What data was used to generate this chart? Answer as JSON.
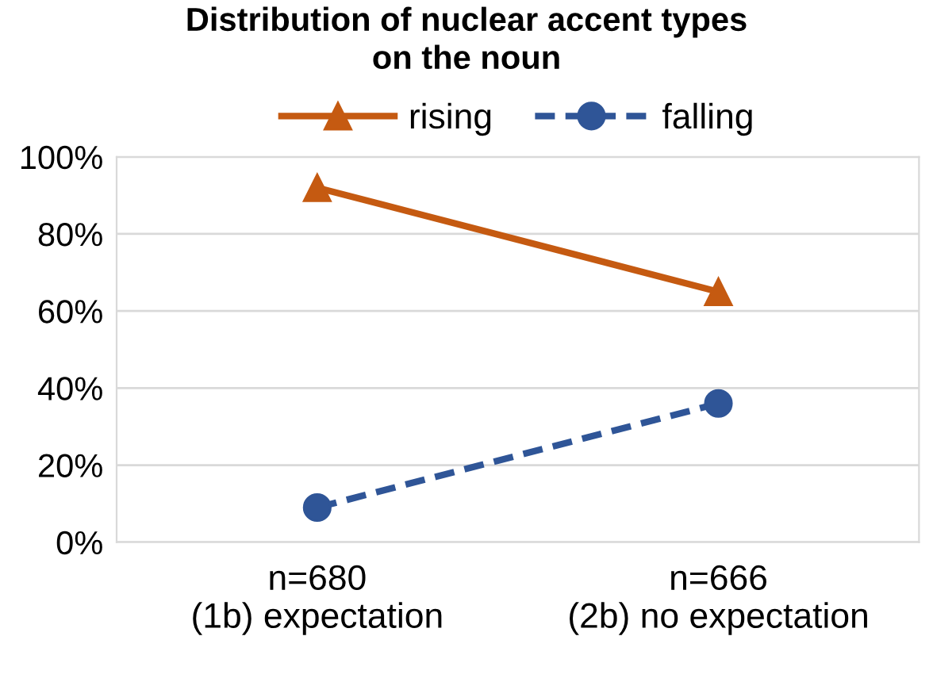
{
  "chart_data": {
    "type": "line",
    "title": "Distribution of nuclear accent types\non the noun",
    "categories": [
      "n=680\n(1b) expectation",
      "n=666\n(2b) no expectation"
    ],
    "series": [
      {
        "name": "rising",
        "color": "#c55a11",
        "values": [
          92,
          65
        ],
        "marker": "triangle",
        "line_style": "solid"
      },
      {
        "name": "falling",
        "color": "#2f5597",
        "values": [
          9,
          36
        ],
        "marker": "circle",
        "line_style": "dashed"
      }
    ],
    "ylim": [
      0,
      100
    ],
    "yticks": [
      {
        "value": 0,
        "label": "0%"
      },
      {
        "value": 20,
        "label": "20%"
      },
      {
        "value": 40,
        "label": "40%"
      },
      {
        "value": 60,
        "label": "60%"
      },
      {
        "value": 80,
        "label": "80%"
      },
      {
        "value": 100,
        "label": "100%"
      }
    ],
    "grid": "y",
    "legend": "top"
  }
}
